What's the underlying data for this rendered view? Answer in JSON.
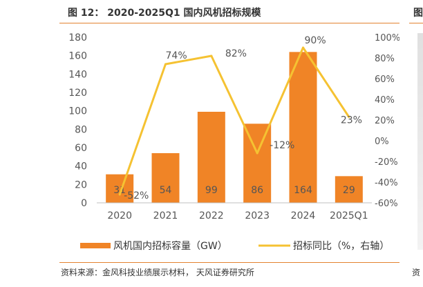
{
  "header": {
    "title": "图 12：  2020-2025Q1 国内风机招标规模",
    "right_fragment": "图"
  },
  "footer": {
    "source": "资料来源：金风科技业绩展示材料，  天风证券研究所",
    "right_fragment": "资"
  },
  "colors": {
    "bar": "#f08426",
    "line": "#f5c232",
    "accent_rule": "#e3812f",
    "axis_text": "#555555"
  },
  "chart_data": {
    "type": "bar",
    "categories": [
      "2020",
      "2021",
      "2022",
      "2023",
      "2024",
      "2025Q1"
    ],
    "series": [
      {
        "name": "风机国内招标容量（GW）",
        "type": "bar",
        "axis": "left",
        "values": [
          31,
          54,
          99,
          86,
          164,
          29
        ],
        "labels": [
          "31",
          "54",
          "99",
          "86",
          "164",
          "29"
        ]
      },
      {
        "name": "招标同比（%，右轴）",
        "type": "line",
        "axis": "right",
        "values": [
          -52,
          74,
          82,
          -12,
          90,
          23
        ],
        "labels": [
          "-52%",
          "74%",
          "82%",
          "-12%",
          "90%",
          "23%"
        ]
      }
    ],
    "y_left": {
      "lim": [
        0,
        180
      ],
      "ticks": [
        "0",
        "20",
        "40",
        "60",
        "80",
        "100",
        "120",
        "140",
        "160",
        "180"
      ]
    },
    "y_right": {
      "lim": [
        -60,
        100
      ],
      "ticks": [
        "-60%",
        "-40%",
        "-20%",
        "0%",
        "20%",
        "40%",
        "60%",
        "80%",
        "100%"
      ]
    },
    "legend_position": "bottom",
    "grid": false
  }
}
